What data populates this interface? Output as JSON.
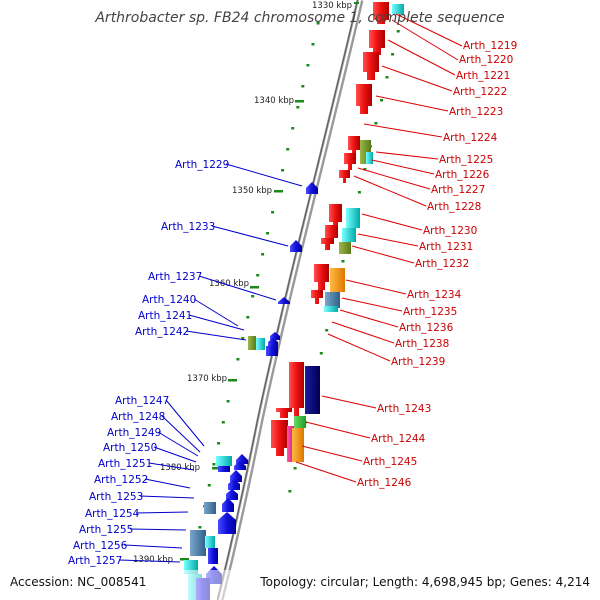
{
  "title": "Arthrobacter sp. FB24 chromosome 1, complete sequence",
  "footer": {
    "accession": "Accession: NC_008541",
    "summary": "Topology: circular; Length: 4,698,945 bp; Genes: 4,214"
  },
  "ticks": [
    "1330 kbp",
    "1340 kbp",
    "1350 kbp",
    "1360 kbp",
    "1370 kbp",
    "1380 kbp",
    "1390 kbp"
  ],
  "right_labels": [
    "Arth_1219",
    "Arth_1220",
    "Arth_1221",
    "Arth_1222",
    "Arth_1223",
    "Arth_1224",
    "Arth_1225",
    "Arth_1226",
    "Arth_1227",
    "Arth_1228",
    "Arth_1230",
    "Arth_1231",
    "Arth_1232",
    "Arth_1234",
    "Arth_1235",
    "Arth_1236",
    "Arth_1238",
    "Arth_1239",
    "Arth_1243",
    "Arth_1244",
    "Arth_1245",
    "Arth_1246"
  ],
  "left_labels": [
    "Arth_1229",
    "Arth_1233",
    "Arth_1237",
    "Arth_1240",
    "Arth_1241",
    "Arth_1242",
    "Arth_1247",
    "Arth_1248",
    "Arth_1249",
    "Arth_1250",
    "Arth_1251",
    "Arth_1252",
    "Arth_1253",
    "Arth_1254",
    "Arth_1255",
    "Arth_1256",
    "Arth_1257"
  ],
  "colors": {
    "forward_strand": "#ee1111",
    "reverse_strand": "#1111dd",
    "backbone": "#888888",
    "tick": "#1a8a1a",
    "cog_olive": "#7a9a2a",
    "cog_cyan": "#22cccc",
    "cog_orange": "#ff9900",
    "cog_navy": "#000070",
    "cog_magenta": "#ee2288",
    "cog_green": "#33bb33",
    "cog_steel": "#4f7fa8"
  }
}
